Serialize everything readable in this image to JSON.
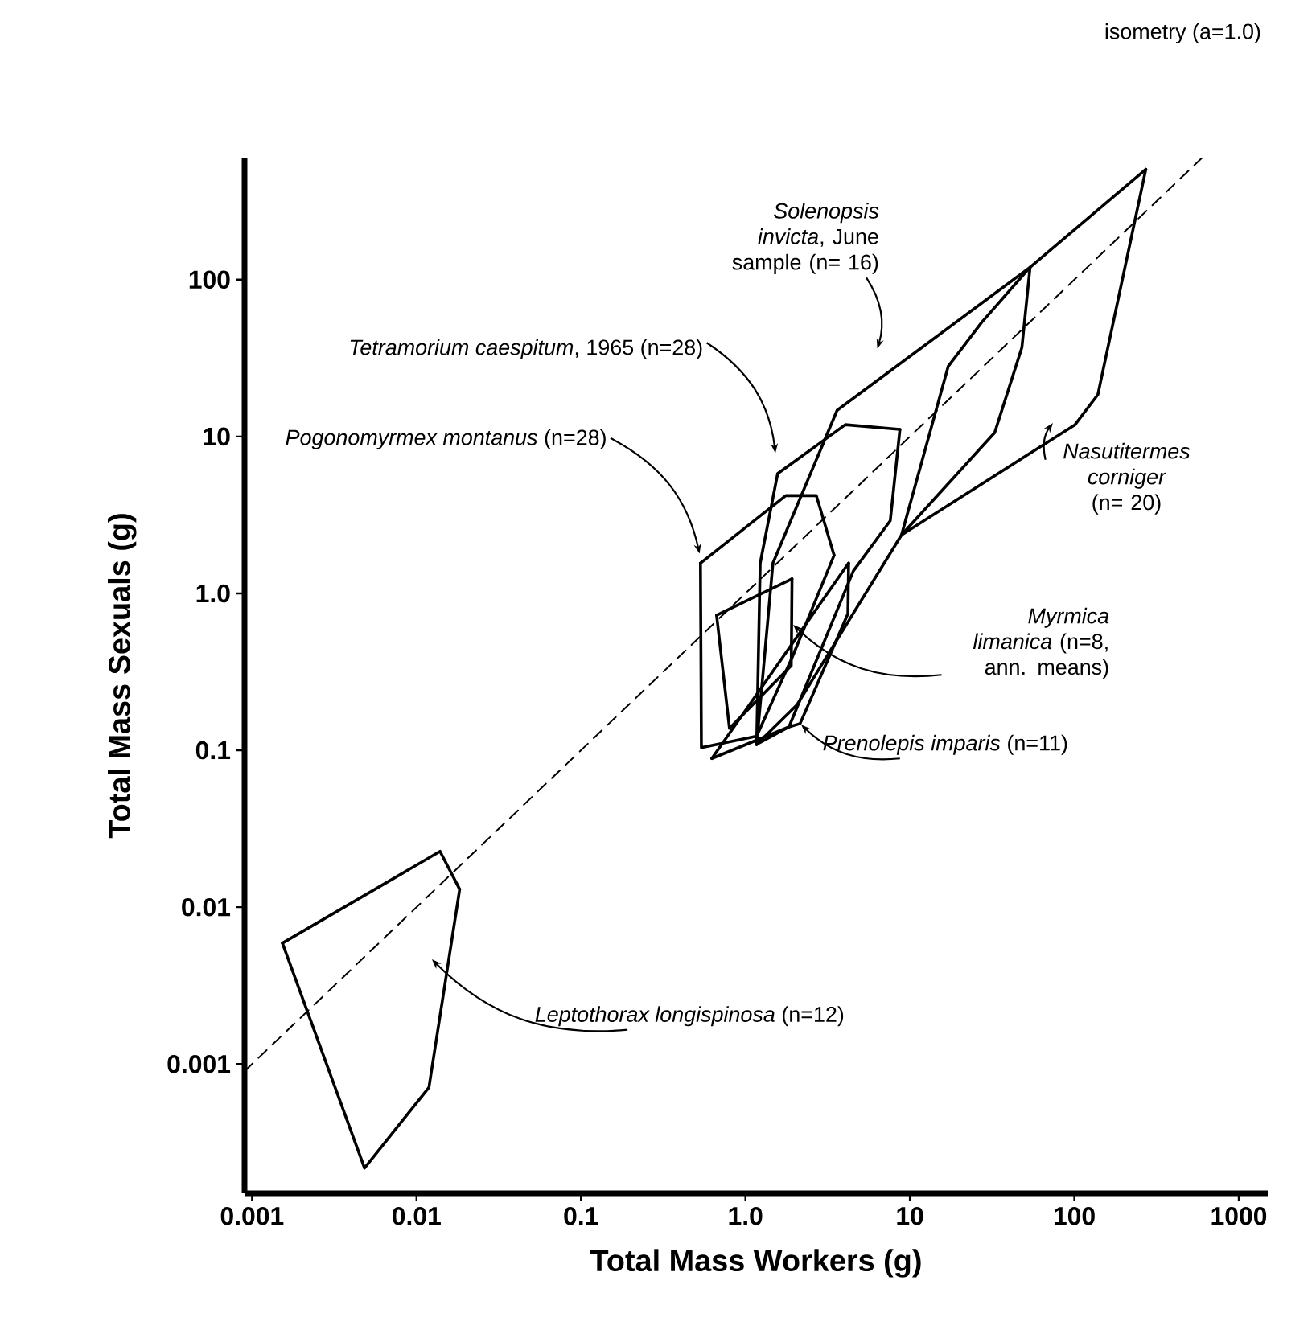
{
  "chart_data": {
    "type": "line",
    "xlabel": "Total Mass Workers (g)",
    "ylabel": "Total Mass Sexuals (g)",
    "log": "xy",
    "xlim": [
      0.0009,
      1500
    ],
    "ylim": [
      0.00015,
      600
    ],
    "xticks": [
      0.001,
      0.01,
      0.1,
      {
        "value": 1,
        "label": "1.0"
      },
      10,
      100,
      1000
    ],
    "yticks": [
      0.001,
      0.01,
      0.1,
      {
        "value": 1,
        "label": "1.0"
      },
      10,
      100
    ],
    "series": [
      {
        "color": "#000000",
        "line_style": "dashed",
        "x": [
          0.0009,
          600
        ],
        "values": [
          0.0009,
          600
        ]
      },
      {
        "color": "#000000",
        "x": [
          1.17,
          1.47,
          3.61,
          53.8
        ],
        "values": [
          0.109,
          1.56,
          14.7,
          120
        ]
      },
      {
        "color": "#000000",
        "x": [
          1.17,
          2.06,
          8.9,
          32.8,
          48,
          53.8
        ],
        "values": [
          0.109,
          0.195,
          2.36,
          10.6,
          37,
          120
        ]
      },
      {
        "color": "#000000",
        "x": [
          1.17,
          1.23,
          1.57,
          4.05,
          8.7
        ],
        "values": [
          0.109,
          1.56,
          5.8,
          11.9,
          11.1
        ]
      },
      {
        "color": "#000000",
        "x": [
          1.17,
          1.84,
          4.53,
          7.6,
          8.7
        ],
        "values": [
          0.109,
          0.141,
          1.39,
          2.91,
          11.1
        ]
      },
      {
        "color": "#000000",
        "x": [
          0.533,
          1.76,
          2.7,
          3.46
        ],
        "values": [
          1.56,
          4.2,
          4.2,
          1.75
        ]
      },
      {
        "color": "#000000",
        "x": [
          0.533,
          0.54,
          1.17,
          1.92,
          3.46
        ],
        "values": [
          1.56,
          0.104,
          0.123,
          0.389,
          1.75
        ]
      },
      {
        "color": "#000000",
        "x": [
          8.9,
          17.1,
          27.4,
          53.8,
          272
        ],
        "values": [
          2.36,
          28,
          53.6,
          120,
          505
        ]
      },
      {
        "color": "#000000",
        "x": [
          8.9,
          101,
          139,
          272
        ],
        "values": [
          2.36,
          11.9,
          18.5,
          505
        ]
      },
      {
        "color": "#000000",
        "x": [
          0.668,
          1.92
        ],
        "values": [
          0.726,
          1.24
        ]
      },
      {
        "color": "#000000",
        "x": [
          0.668,
          0.8,
          1.9,
          1.92
        ],
        "values": [
          0.726,
          0.138,
          0.347,
          1.24
        ]
      },
      {
        "color": "#000000",
        "x": [
          0.625,
          4.24
        ],
        "values": [
          0.0887,
          1.56
        ]
      },
      {
        "color": "#000000",
        "x": [
          0.625,
          1.84,
          2.15,
          4.2,
          4.24
        ],
        "values": [
          0.0887,
          0.141,
          0.148,
          0.743,
          1.56
        ]
      },
      {
        "color": "#000000",
        "x": [
          0.00153,
          0.0139,
          0.0183
        ],
        "values": [
          0.0059,
          0.0227,
          0.013
        ]
      },
      {
        "color": "#000000",
        "x": [
          0.00153,
          0.00483,
          0.0119,
          0.0183
        ],
        "values": [
          0.0059,
          0.000217,
          0.00071,
          0.013
        ]
      }
    ],
    "annotations": [
      "isometry (a=1.0)",
      "*Solenopsis invicta*, June sample (n= 16)",
      "*Tetramorium caespitum*, 1965 (n=28)",
      "*Pogonomyrmex montanus* (n=28)",
      "*Nasutitermes corniger* (n= 20)",
      "*Myrmica limanica* (n=8, ann. means)",
      {
        "text": "*Prenolepis imparis* (n=11)",
        "x": 2.15,
        "y": 0.148
      },
      "*Leptothorax longispinosa* (n=12)"
    ]
  }
}
